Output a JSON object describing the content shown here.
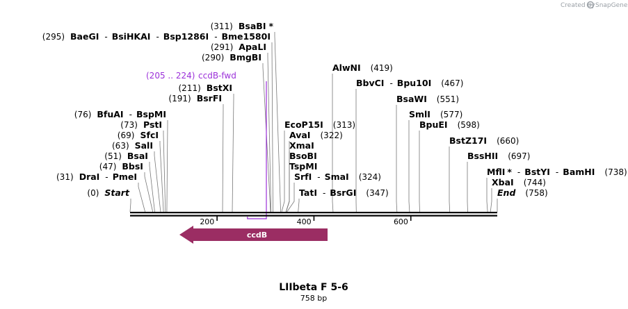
{
  "credit": {
    "text": "Created by",
    "brand": "SnapGene"
  },
  "plasmid": {
    "name": "LIIbeta F 5-6",
    "length_label": "758 bp",
    "length": 758
  },
  "ruler": {
    "ticks": [
      {
        "value": 200,
        "label": "200"
      },
      {
        "value": 400,
        "label": "400"
      },
      {
        "value": 600,
        "label": "600"
      }
    ]
  },
  "features": [
    {
      "name": "ccdB",
      "start": 102,
      "end": 408,
      "direction": "reverse",
      "color": "#9b2d63"
    }
  ],
  "primers": [
    {
      "name": "ccdB-fwd",
      "range": "(205 .. 224)",
      "start": 205,
      "end": 224,
      "color": "#9b30d9"
    }
  ],
  "sites": [
    {
      "pos": 311,
      "pos_label": "(311)",
      "parts": [
        "BsaBI"
      ],
      "star": "*"
    },
    {
      "pos": 295,
      "pos_label": "(295)",
      "parts": [
        "BaeGI",
        "BsiHKAI",
        "Bsp1286I",
        "Bme1580I"
      ]
    },
    {
      "pos": 291,
      "pos_label": "(291)",
      "parts": [
        "ApaLI"
      ]
    },
    {
      "pos": 290,
      "pos_label": "(290)",
      "parts": [
        "BmgBI"
      ]
    },
    {
      "pos": 211,
      "pos_label": "(211)",
      "parts": [
        "BstXI"
      ]
    },
    {
      "pos": 191,
      "pos_label": "(191)",
      "parts": [
        "BsrFI"
      ]
    },
    {
      "pos": 76,
      "pos_label": "(76)",
      "parts": [
        "BfuAI",
        "BspMI"
      ]
    },
    {
      "pos": 73,
      "pos_label": "(73)",
      "parts": [
        "PstI"
      ]
    },
    {
      "pos": 69,
      "pos_label": "(69)",
      "parts": [
        "SfcI"
      ]
    },
    {
      "pos": 63,
      "pos_label": "(63)",
      "parts": [
        "SalI"
      ]
    },
    {
      "pos": 51,
      "pos_label": "(51)",
      "parts": [
        "BsaI"
      ]
    },
    {
      "pos": 47,
      "pos_label": "(47)",
      "parts": [
        "BbsI"
      ]
    },
    {
      "pos": 31,
      "pos_label": "(31)",
      "parts": [
        "DraI",
        "PmeI"
      ]
    },
    {
      "pos": 0,
      "pos_label": "(0)",
      "parts": [
        "Start"
      ],
      "italic": true
    },
    {
      "pos": 419,
      "pos_label": "(419)",
      "parts": [
        "AlwNI"
      ]
    },
    {
      "pos": 467,
      "pos_label": "(467)",
      "parts": [
        "BbvCI",
        "Bpu10I"
      ]
    },
    {
      "pos": 313,
      "pos_label": "(313)",
      "parts": [
        "EcoP15I"
      ]
    },
    {
      "pos": 322,
      "pos_label": "(322)",
      "parts": [
        "AvaI"
      ]
    },
    {
      "pos": 322,
      "pos_label": "",
      "parts": [
        "XmaI"
      ]
    },
    {
      "pos": 322,
      "pos_label": "",
      "parts": [
        "BsoBI"
      ]
    },
    {
      "pos": 322,
      "pos_label": "",
      "parts": [
        "TspMI"
      ]
    },
    {
      "pos": 324,
      "pos_label": "(324)",
      "parts": [
        "SrfI",
        "SmaI"
      ]
    },
    {
      "pos": 347,
      "pos_label": "(347)",
      "parts": [
        "TatI",
        "BsrGI"
      ]
    },
    {
      "pos": 551,
      "pos_label": "(551)",
      "parts": [
        "BsaWI"
      ]
    },
    {
      "pos": 577,
      "pos_label": "(577)",
      "parts": [
        "SmlI"
      ]
    },
    {
      "pos": 598,
      "pos_label": "(598)",
      "parts": [
        "BpuEI"
      ]
    },
    {
      "pos": 660,
      "pos_label": "(660)",
      "parts": [
        "BstZ17I"
      ]
    },
    {
      "pos": 697,
      "pos_label": "(697)",
      "parts": [
        "BssHII"
      ]
    },
    {
      "pos": 738,
      "pos_label": "(738)",
      "parts": [
        "MflI",
        "BstYI",
        "BamHI"
      ],
      "star_after_first": "*"
    },
    {
      "pos": 744,
      "pos_label": "(744)",
      "parts": [
        "XbaI"
      ]
    },
    {
      "pos": 758,
      "pos_label": "(758)",
      "parts": [
        "End"
      ],
      "italic": true
    }
  ]
}
